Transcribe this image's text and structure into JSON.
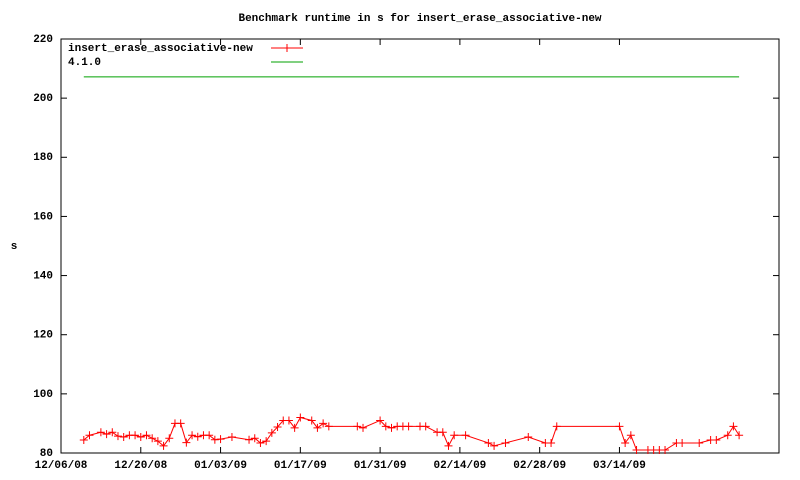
{
  "chart_data": {
    "type": "line",
    "title": "Benchmark runtime in s for insert_erase_associative-new",
    "y_label": "s",
    "xlim": [
      "2008-12-06",
      "2009-04-11"
    ],
    "xticks": [
      {
        "value": "2008-12-06",
        "label": "12/06/08"
      },
      {
        "value": "2008-12-20",
        "label": "12/20/08"
      },
      {
        "value": "2009-01-03",
        "label": "01/03/09"
      },
      {
        "value": "2009-01-17",
        "label": "01/17/09"
      },
      {
        "value": "2009-01-31",
        "label": "01/31/09"
      },
      {
        "value": "2009-02-14",
        "label": "02/14/09"
      },
      {
        "value": "2009-02-28",
        "label": "02/28/09"
      },
      {
        "value": "2009-03-14",
        "label": "03/14/09"
      }
    ],
    "ylim": [
      80,
      220
    ],
    "yticks": [
      80,
      100,
      120,
      140,
      160,
      180,
      200,
      220
    ],
    "grid": false,
    "legend": "top-left",
    "series": [
      {
        "name": "insert_erase_associative-new",
        "color": "#ff0000",
        "markers": true,
        "x": [
          "2008-12-10",
          "2008-12-11",
          "2008-12-13",
          "2008-12-14",
          "2008-12-15",
          "2008-12-16",
          "2008-12-17",
          "2008-12-18",
          "2008-12-19",
          "2008-12-20",
          "2008-12-21",
          "2008-12-22",
          "2008-12-23",
          "2008-12-24",
          "2008-12-25",
          "2008-12-26",
          "2008-12-27",
          "2008-12-28",
          "2008-12-29",
          "2008-12-30",
          "2008-12-31",
          "2009-01-01",
          "2009-01-02",
          "2009-01-03",
          "2009-01-05",
          "2009-01-08",
          "2009-01-09",
          "2009-01-10",
          "2009-01-11",
          "2009-01-12",
          "2009-01-13",
          "2009-01-14",
          "2009-01-15",
          "2009-01-16",
          "2009-01-17",
          "2009-01-19",
          "2009-01-20",
          "2009-01-21",
          "2009-01-22",
          "2009-01-27",
          "2009-01-28",
          "2009-01-31",
          "2009-02-01",
          "2009-02-02",
          "2009-02-03",
          "2009-02-04",
          "2009-02-05",
          "2009-02-07",
          "2009-02-08",
          "2009-02-10",
          "2009-02-11",
          "2009-02-12",
          "2009-02-13",
          "2009-02-15",
          "2009-02-19",
          "2009-02-20",
          "2009-02-22",
          "2009-02-26",
          "2009-03-01",
          "2009-03-02",
          "2009-03-03",
          "2009-03-14",
          "2009-03-15",
          "2009-03-16",
          "2009-03-17",
          "2009-03-19",
          "2009-03-20",
          "2009-03-21",
          "2009-03-22",
          "2009-03-24",
          "2009-03-25",
          "2009-03-28",
          "2009-03-30",
          "2009-03-31",
          "2009-04-02",
          "2009-04-03",
          "2009-04-04"
        ],
        "values": [
          84.4,
          86,
          87,
          86.4,
          87,
          85.7,
          85.4,
          86,
          86,
          85.4,
          86,
          85,
          84,
          82.4,
          85,
          90,
          90,
          83.5,
          86,
          85.5,
          86,
          86,
          84.5,
          84.7,
          85.4,
          84.5,
          85,
          83.4,
          84,
          86.8,
          88.8,
          91,
          91,
          88.5,
          92,
          91,
          88.5,
          90,
          89,
          89,
          88.5,
          91,
          89,
          88.5,
          89,
          89,
          89,
          89,
          89,
          87,
          87,
          82.4,
          86,
          86,
          83.4,
          82.4,
          83.4,
          85.4,
          83.4,
          83.4,
          89,
          89,
          83.4,
          86,
          81,
          81,
          81,
          81,
          81,
          83.4,
          83.4,
          83.4,
          84.4,
          84.4,
          86,
          89,
          86
        ]
      },
      {
        "name": "4.1.0",
        "color": "#00a000",
        "markers": false,
        "x": [
          "2008-12-10",
          "2009-04-04"
        ],
        "values": [
          207.2,
          207.2
        ]
      }
    ]
  }
}
